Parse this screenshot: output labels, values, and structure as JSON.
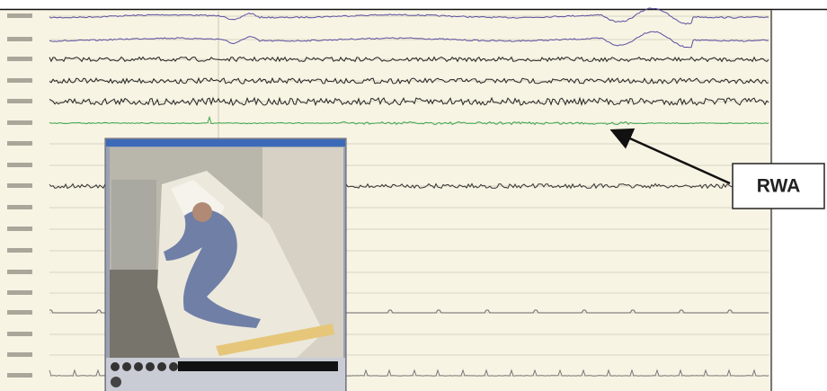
{
  "annotation": {
    "label": "RWA"
  }
}
